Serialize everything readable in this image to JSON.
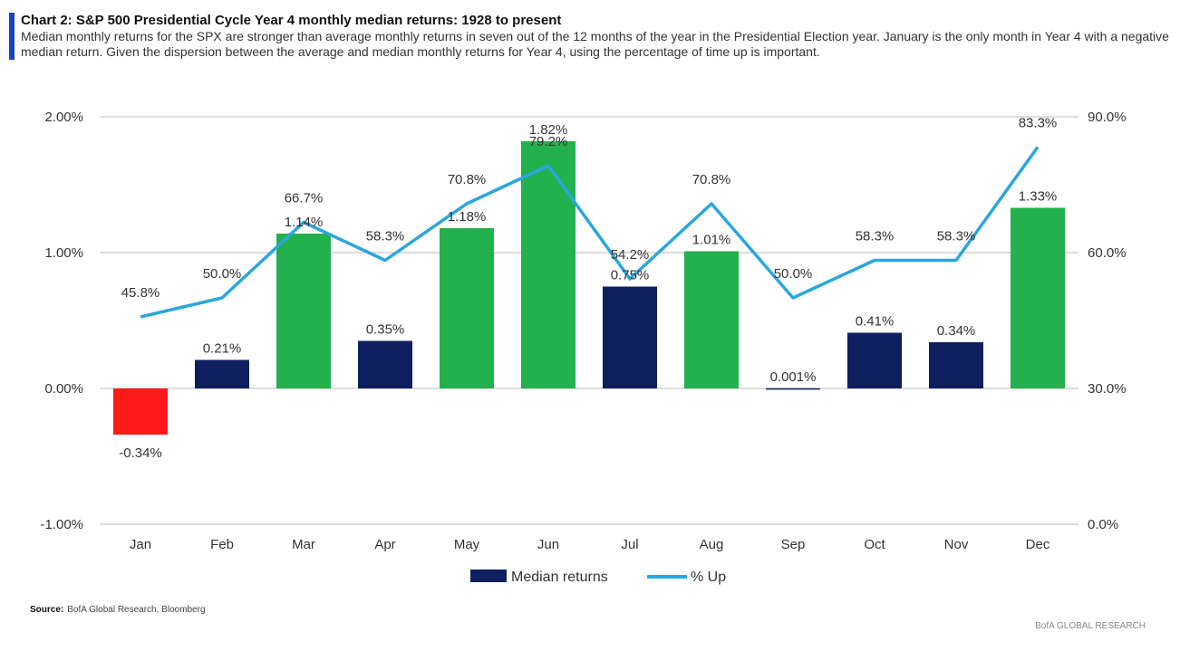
{
  "header": {
    "title": "Chart 2: S&P 500 Presidential Cycle Year 4 monthly median returns: 1928 to present",
    "subtitle": "Median monthly returns for the SPX are stronger than average monthly returns in seven out of the 12 months of the year in the Presidential Election year. January is the only month in Year 4 with a negative median return. Given the dispersion between the average and median monthly returns for Year 4, using the percentage of time up is important."
  },
  "footer": {
    "source_label": "Source:",
    "source_text": "BofA Global Research, Bloomberg",
    "brand": "BofA GLOBAL RESEARCH"
  },
  "chart_data": {
    "type": "bar+line",
    "categories": [
      "Jan",
      "Feb",
      "Mar",
      "Apr",
      "May",
      "Jun",
      "Jul",
      "Aug",
      "Sep",
      "Oct",
      "Nov",
      "Dec"
    ],
    "series": [
      {
        "name": "Median returns",
        "type": "bar",
        "axis": "left",
        "values": [
          -0.34,
          0.21,
          1.14,
          0.35,
          1.18,
          1.82,
          0.75,
          1.01,
          0.001,
          0.41,
          0.34,
          1.33
        ],
        "labels": [
          "-0.34%",
          "0.21%",
          "1.14%",
          "0.35%",
          "1.18%",
          "1.82%",
          "0.75%",
          "1.01%",
          "0.001%",
          "0.41%",
          "0.34%",
          "1.33%"
        ],
        "colors": [
          "#ff1a1a",
          "#0d1f5e",
          "#23b14d",
          "#0d1f5e",
          "#23b14d",
          "#23b14d",
          "#0d1f5e",
          "#23b14d",
          "#0d1f5e",
          "#0d1f5e",
          "#0d1f5e",
          "#23b14d"
        ]
      },
      {
        "name": "% Up",
        "type": "line",
        "axis": "right",
        "color": "#2aa6de",
        "values": [
          45.8,
          50.0,
          66.7,
          58.3,
          70.8,
          79.2,
          54.2,
          70.8,
          50.0,
          58.3,
          58.3,
          83.3
        ],
        "labels": [
          "45.8%",
          "50.0%",
          "66.7%",
          "58.3%",
          "70.8%",
          "79.2%",
          "54.2%",
          "70.8%",
          "50.0%",
          "58.3%",
          "58.3%",
          "83.3%"
        ]
      }
    ],
    "left_axis": {
      "range": [
        -1,
        2
      ],
      "ticks": [
        "-1.00%",
        "0.00%",
        "1.00%",
        "2.00%"
      ]
    },
    "right_axis": {
      "range": [
        0,
        90
      ],
      "ticks": [
        "0.0%",
        "30.0%",
        "60.0%",
        "90.0%"
      ]
    },
    "grid": true,
    "legend": {
      "placement": "bottom",
      "entries": [
        "Median returns",
        "% Up"
      ]
    }
  }
}
